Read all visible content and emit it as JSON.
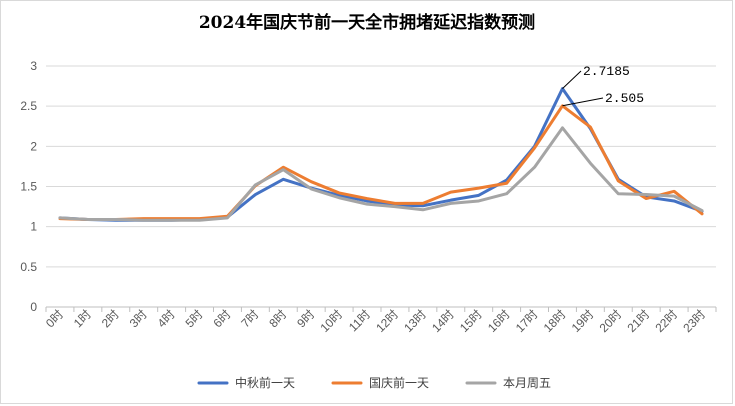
{
  "chart_data": {
    "type": "line",
    "title": "2024年国庆节前一天全市拥堵延迟指数预测",
    "xlabel": "",
    "ylabel": "",
    "categories": [
      "0时",
      "1时",
      "2时",
      "3时",
      "4时",
      "5时",
      "6时",
      "7时",
      "8时",
      "9时",
      "10时",
      "11时",
      "12时",
      "13时",
      "14时",
      "15时",
      "16时",
      "17时",
      "18时",
      "19时",
      "20时",
      "21时",
      "22时",
      "23时"
    ],
    "ylim": [
      0,
      3
    ],
    "yticks": [
      "0",
      "0.5",
      "1",
      "1.5",
      "2",
      "2.5",
      "3"
    ],
    "grid": true,
    "legend_position": "bottom",
    "series": [
      {
        "name": "中秋前一天",
        "color": "#4472C4",
        "values": [
          1.11,
          1.09,
          1.08,
          1.08,
          1.08,
          1.09,
          1.12,
          1.4,
          1.59,
          1.48,
          1.39,
          1.32,
          1.27,
          1.26,
          1.33,
          1.39,
          1.58,
          2.0,
          2.7185,
          2.22,
          1.59,
          1.37,
          1.32,
          1.19
        ]
      },
      {
        "name": "国庆前一天",
        "color": "#ED7D31",
        "values": [
          1.1,
          1.09,
          1.09,
          1.1,
          1.1,
          1.1,
          1.13,
          1.51,
          1.74,
          1.56,
          1.42,
          1.35,
          1.29,
          1.29,
          1.43,
          1.48,
          1.54,
          1.98,
          2.505,
          2.24,
          1.57,
          1.35,
          1.44,
          1.16
        ]
      },
      {
        "name": "本月周五",
        "color": "#A5A5A5",
        "values": [
          1.11,
          1.09,
          1.09,
          1.08,
          1.08,
          1.08,
          1.11,
          1.52,
          1.71,
          1.47,
          1.36,
          1.28,
          1.25,
          1.21,
          1.29,
          1.32,
          1.41,
          1.74,
          2.23,
          1.79,
          1.41,
          1.4,
          1.38,
          1.2
        ]
      }
    ],
    "annotations": [
      {
        "text": "2.7185",
        "series": "中秋前一天",
        "x": "18时",
        "y": 2.7185
      },
      {
        "text": "2.505",
        "series": "国庆前一天",
        "x": "18时",
        "y": 2.505
      }
    ]
  }
}
